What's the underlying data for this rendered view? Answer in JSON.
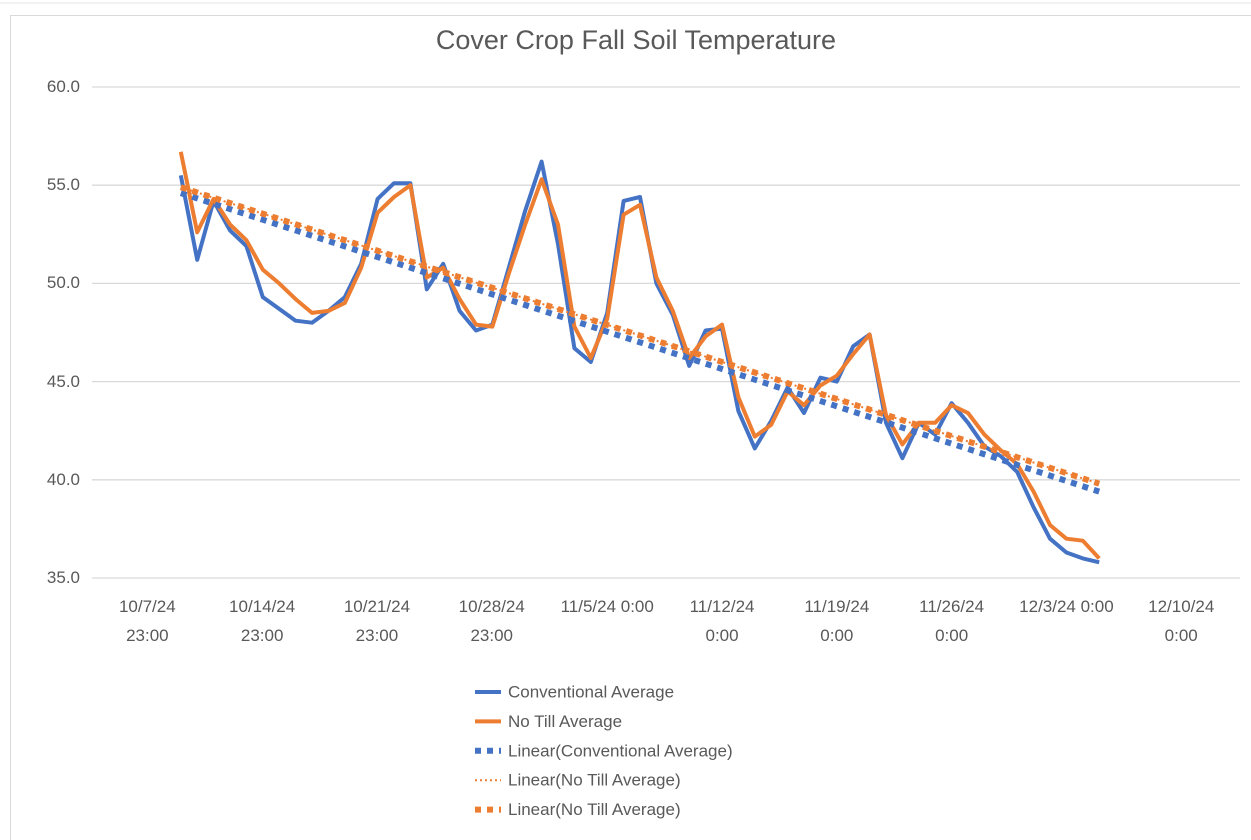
{
  "chart_data": {
    "type": "line",
    "title": "Cover Crop Fall Soil Temperature",
    "x": [
      "2024-10-10T00:00",
      "2024-10-11T00:00",
      "2024-10-12T00:00",
      "2024-10-13T00:00",
      "2024-10-14T00:00",
      "2024-10-15T00:00",
      "2024-10-16T00:00",
      "2024-10-17T00:00",
      "2024-10-18T00:00",
      "2024-10-19T00:00",
      "2024-10-20T00:00",
      "2024-10-21T00:00",
      "2024-10-22T00:00",
      "2024-10-23T00:00",
      "2024-10-24T00:00",
      "2024-10-25T00:00",
      "2024-10-26T00:00",
      "2024-10-27T00:00",
      "2024-10-28T00:00",
      "2024-10-29T00:00",
      "2024-10-30T00:00",
      "2024-10-31T00:00",
      "2024-11-01T00:00",
      "2024-11-02T00:00",
      "2024-11-03T00:00",
      "2024-11-04T00:00",
      "2024-11-05T00:00",
      "2024-11-06T00:00",
      "2024-11-07T00:00",
      "2024-11-08T00:00",
      "2024-11-09T00:00",
      "2024-11-10T00:00",
      "2024-11-11T00:00",
      "2024-11-12T00:00",
      "2024-11-13T00:00",
      "2024-11-14T00:00",
      "2024-11-15T00:00",
      "2024-11-16T00:00",
      "2024-11-17T00:00",
      "2024-11-18T00:00",
      "2024-11-19T00:00",
      "2024-11-20T00:00",
      "2024-11-21T00:00",
      "2024-11-22T00:00",
      "2024-11-23T00:00",
      "2024-11-24T00:00",
      "2024-11-25T00:00",
      "2024-11-26T00:00",
      "2024-11-27T00:00",
      "2024-11-28T00:00",
      "2024-11-29T00:00",
      "2024-11-30T00:00",
      "2024-12-01T00:00",
      "2024-12-02T00:00",
      "2024-12-03T00:00",
      "2024-12-04T00:00",
      "2024-12-05T00:00"
    ],
    "series": [
      {
        "name": "Conventional Average",
        "color": "#4472c4",
        "values": [
          55.5,
          51.2,
          54.2,
          52.7,
          51.9,
          49.3,
          48.7,
          48.1,
          48.0,
          48.6,
          49.3,
          51.0,
          54.3,
          55.1,
          55.1,
          49.7,
          51.0,
          48.6,
          47.6,
          47.9,
          50.8,
          53.7,
          56.2,
          52.0,
          46.7,
          46.0,
          48.5,
          54.2,
          54.4,
          50.0,
          48.4,
          45.8,
          47.6,
          47.7,
          43.5,
          41.6,
          43.0,
          44.7,
          43.4,
          45.2,
          45.0,
          46.8,
          47.4,
          42.9,
          41.1,
          42.9,
          42.3,
          43.9,
          42.9,
          41.7,
          41.2,
          40.4,
          38.6,
          37.0,
          36.3,
          36.0,
          35.8
        ]
      },
      {
        "name": "No Till Average",
        "color": "#ed7d31",
        "values": [
          56.7,
          52.6,
          54.3,
          53.0,
          52.2,
          50.7,
          50.0,
          49.2,
          48.5,
          48.6,
          49.0,
          50.8,
          53.6,
          54.4,
          55.0,
          50.3,
          50.8,
          49.2,
          47.9,
          47.8,
          50.5,
          53.0,
          55.3,
          53.0,
          47.8,
          46.2,
          48.2,
          53.5,
          54.0,
          50.3,
          48.6,
          46.2,
          47.3,
          47.9,
          44.2,
          42.2,
          42.8,
          44.5,
          43.8,
          44.8,
          45.3,
          46.4,
          47.4,
          43.3,
          41.8,
          42.9,
          42.9,
          43.8,
          43.4,
          42.3,
          41.5,
          40.8,
          39.4,
          37.7,
          37.0,
          36.9,
          36.0
        ]
      }
    ],
    "trendlines": [
      {
        "name": "Linear(Conventional Average)",
        "color": "#4472c4",
        "line_style": "dash",
        "x": [
          "2024-10-10T00:00",
          "2024-12-05T00:00"
        ],
        "values": [
          54.6,
          39.4
        ]
      },
      {
        "name": "Linear(No Till Average)",
        "color": "#ed7d31",
        "line_style": "dot",
        "x": [
          "2024-10-10T00:00",
          "2024-12-05T00:00"
        ],
        "values": [
          54.9,
          39.8
        ]
      },
      {
        "name": "Linear(No Till Average)",
        "color": "#ed7d31",
        "line_style": "dash",
        "x": [
          "2024-10-10T00:00",
          "2024-12-05T00:00"
        ],
        "values": [
          54.9,
          39.8
        ]
      }
    ],
    "xlim": [
      "2024-10-04T14:00",
      "2024-12-13T14:00"
    ],
    "xticks": [
      {
        "value": "2024-10-07T23:00",
        "label": "10/7/24 23:00"
      },
      {
        "value": "2024-10-14T23:00",
        "label": "10/14/24 23:00"
      },
      {
        "value": "2024-10-21T23:00",
        "label": "10/21/24 23:00"
      },
      {
        "value": "2024-10-28T23:00",
        "label": "10/28/24 23:00"
      },
      {
        "value": "2024-11-05T00:00",
        "label": "11/5/24 0:00"
      },
      {
        "value": "2024-11-12T00:00",
        "label": "11/12/24 0:00"
      },
      {
        "value": "2024-11-19T00:00",
        "label": "11/19/24 0:00"
      },
      {
        "value": "2024-11-26T00:00",
        "label": "11/26/24 0:00"
      },
      {
        "value": "2024-12-03T00:00",
        "label": "12/3/24 0:00"
      },
      {
        "value": "2024-12-10T00:00",
        "label": "12/10/24 0:00"
      }
    ],
    "ylim": [
      35,
      60
    ],
    "yticks": [
      {
        "value": 35,
        "label": "35.0"
      },
      {
        "value": 40,
        "label": "40.0"
      },
      {
        "value": 45,
        "label": "45.0"
      },
      {
        "value": 50,
        "label": "50.0"
      },
      {
        "value": 55,
        "label": "55.0"
      },
      {
        "value": 60,
        "label": "60.0"
      }
    ],
    "grid": true,
    "legend": "bottom"
  }
}
